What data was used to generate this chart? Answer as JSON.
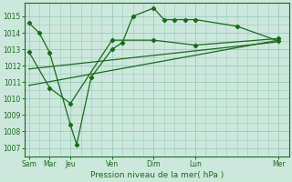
{
  "xlabel": "Pression niveau de la mer( hPa )",
  "bg_color": "#cce8dd",
  "grid_color": "#99ccbb",
  "line_color": "#1a6b1a",
  "marker_color": "#1a6b1a",
  "ylim": [
    1006.5,
    1015.8
  ],
  "yticks": [
    1007,
    1008,
    1009,
    1010,
    1011,
    1012,
    1013,
    1014,
    1015
  ],
  "x_major_pos": [
    0,
    1,
    2,
    4,
    6,
    8,
    12
  ],
  "x_major_labels": [
    "Sam",
    "Mar",
    "Jeu",
    "Ven",
    "Dim",
    "Lun",
    "Mer"
  ],
  "x_minor_pos": [
    0,
    0.5,
    1,
    1.5,
    2,
    2.5,
    3,
    3.5,
    4,
    4.5,
    5,
    5.5,
    6,
    6.5,
    7,
    7.5,
    8,
    8.5,
    9,
    9.5,
    10,
    10.5,
    11,
    11.5,
    12
  ],
  "xlim": [
    -0.2,
    12.5
  ],
  "series1_x": [
    0,
    0.5,
    1,
    2,
    2.3,
    3,
    4,
    4.5,
    5,
    6,
    6.5,
    7,
    7.5,
    8,
    10,
    12
  ],
  "series1_y": [
    1014.6,
    1014.0,
    1012.8,
    1008.4,
    1007.2,
    1011.3,
    1013.0,
    1013.4,
    1015.0,
    1015.5,
    1014.8,
    1014.8,
    1014.8,
    1014.8,
    1014.4,
    1013.5
  ],
  "series2_x": [
    0,
    1,
    2,
    4,
    6,
    8,
    12
  ],
  "series2_y": [
    1012.85,
    1010.65,
    1009.7,
    1013.55,
    1013.55,
    1013.25,
    1013.65
  ],
  "series3_x": [
    0,
    12
  ],
  "series3_y": [
    1010.8,
    1013.55
  ],
  "series4_x": [
    0,
    12
  ],
  "series4_y": [
    1011.8,
    1013.45
  ]
}
